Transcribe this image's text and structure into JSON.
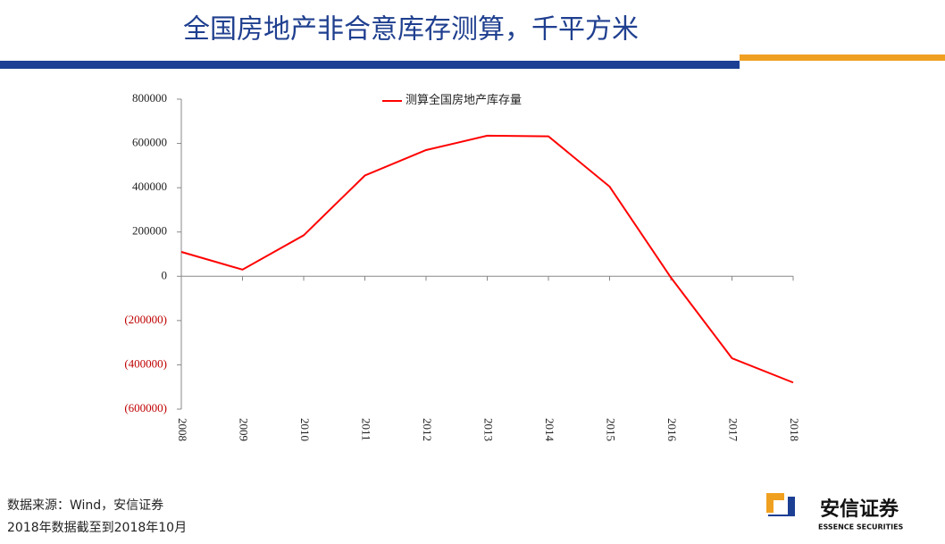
{
  "header": {
    "title": "全国房地产非合意库存测算，千平方米"
  },
  "chart_data": {
    "type": "line",
    "categories": [
      "2008",
      "2009",
      "2010",
      "2011",
      "2012",
      "2013",
      "2014",
      "2015",
      "2016",
      "2017",
      "2018"
    ],
    "series": [
      {
        "name": "测算全国房地产库存量",
        "color": "#ff0000",
        "values": [
          110000,
          30000,
          185000,
          455000,
          570000,
          635000,
          632000,
          405000,
          -5000,
          -370000,
          -480000
        ]
      }
    ],
    "ylim": [
      -600000,
      800000
    ],
    "yticks": [
      {
        "value": -600000,
        "label": "(600000)"
      },
      {
        "value": -400000,
        "label": "(400000)"
      },
      {
        "value": -200000,
        "label": "(200000)"
      },
      0,
      200000,
      400000,
      600000,
      800000
    ],
    "negative_tick_color": "#c00000",
    "legend": "top"
  },
  "footer": {
    "source": "数据来源：Wind，安信证券",
    "note": "2018年数据截至到2018年10月"
  },
  "logo": {
    "name": "安信证券",
    "subtitle": "ESSENCE SECURITIES"
  }
}
